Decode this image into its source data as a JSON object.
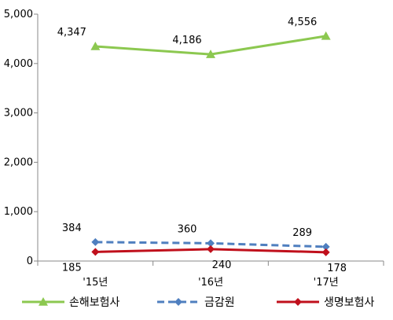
{
  "chart_data": {
    "type": "line",
    "categories": [
      "'15년",
      "'16년",
      "'17년"
    ],
    "ylim": [
      0,
      5000
    ],
    "yticks": [
      0,
      1000,
      2000,
      3000,
      4000,
      5000
    ],
    "ytick_labels": [
      "0",
      "1,000",
      "2,000",
      "3,000",
      "4,000",
      "5,000"
    ],
    "grid": false,
    "legend_position": "bottom",
    "series": [
      {
        "name": "손해보험사",
        "values": [
          4347,
          4186,
          4556
        ],
        "labels": [
          "4,347",
          "4,186",
          "4,556"
        ],
        "color": "#8cc850",
        "marker": "triangle",
        "dash": "solid",
        "label_position": "above"
      },
      {
        "name": "금감원",
        "values": [
          384,
          360,
          289
        ],
        "labels": [
          "384",
          "360",
          "289"
        ],
        "color": "#4f7fbf",
        "marker": "diamond",
        "dash": "dashed",
        "label_position": "above"
      },
      {
        "name": "생명보험사",
        "values": [
          185,
          240,
          178
        ],
        "labels": [
          "185",
          "240",
          "178"
        ],
        "color": "#c0101c",
        "marker": "diamond",
        "dash": "solid",
        "label_position": "below"
      }
    ]
  }
}
